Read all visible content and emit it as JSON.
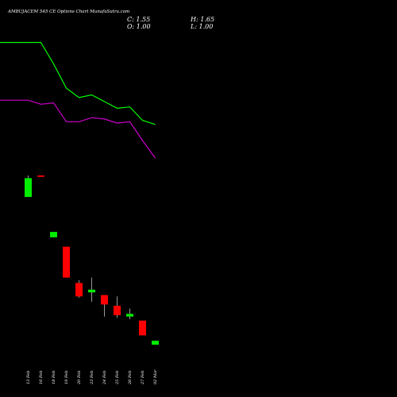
{
  "chart_data": {
    "type": "candlestick",
    "title": "AMBUJACEM 545 CE Options Chart MunafaSutra.com",
    "ohlc_readout": {
      "open_label": "O: 1.00",
      "high_label": "H: 1.65",
      "low_label": "L: 1.00",
      "close_label": "C: 1.55"
    },
    "colors": {
      "background": "#000000",
      "up": "#00ee00",
      "down": "#ff0000",
      "wick": "#ffffff",
      "ma_green": "#00ff00",
      "ma_magenta": "#cc00cc"
    },
    "ylim": [
      0,
      26
    ],
    "grid": false,
    "candles": [
      {
        "date": "13 Feb",
        "open": 14.0,
        "high": 15.6,
        "low": 14.0,
        "close": 15.4
      },
      {
        "date": "16 Feb",
        "open": 15.6,
        "high": 15.6,
        "low": 15.5,
        "close": 15.5
      },
      {
        "date": "18 Feb",
        "open": 11.0,
        "high": 11.4,
        "low": 11.0,
        "close": 11.4
      },
      {
        "date": "19 Feb",
        "open": 10.3,
        "high": 10.3,
        "low": 8.0,
        "close": 8.0
      },
      {
        "date": "20 Feb",
        "open": 7.6,
        "high": 7.8,
        "low": 6.5,
        "close": 6.6
      },
      {
        "date": "23 Feb",
        "open": 6.9,
        "high": 8.0,
        "low": 6.2,
        "close": 7.1
      },
      {
        "date": "24 Feb",
        "open": 6.7,
        "high": 6.7,
        "low": 5.1,
        "close": 6.0
      },
      {
        "date": "25 Feb",
        "open": 5.9,
        "high": 6.6,
        "low": 5.0,
        "close": 5.2
      },
      {
        "date": "26 Feb",
        "open": 5.1,
        "high": 5.7,
        "low": 4.9,
        "close": 5.3
      },
      {
        "date": "27 Feb",
        "open": 4.8,
        "high": 4.8,
        "low": 3.7,
        "close": 3.7
      },
      {
        "date": "02 Mar",
        "open": 3.0,
        "high": 3.3,
        "low": 3.0,
        "close": 3.3
      }
    ],
    "series": [
      {
        "role": "moving-average-green",
        "color": "#00ff00",
        "x": [
          "",
          "13 Feb",
          "16 Feb",
          "18 Feb",
          "19 Feb",
          "20 Feb",
          "23 Feb",
          "24 Feb",
          "25 Feb",
          "26 Feb",
          "27 Feb",
          "02 Mar"
        ],
        "values": [
          25.5,
          25.5,
          25.5,
          23.9,
          22.1,
          21.4,
          21.6,
          21.1,
          20.6,
          20.7,
          19.7,
          19.4
        ]
      },
      {
        "role": "moving-average-magenta",
        "color": "#cc00cc",
        "x": [
          "",
          "13 Feb",
          "16 Feb",
          "18 Feb",
          "19 Feb",
          "20 Feb",
          "23 Feb",
          "24 Feb",
          "25 Feb",
          "26 Feb",
          "27 Feb",
          "02 Mar"
        ],
        "values": [
          21.2,
          21.2,
          20.9,
          21.0,
          19.6,
          19.6,
          19.9,
          19.8,
          19.5,
          19.6,
          18.2,
          16.9
        ]
      }
    ]
  }
}
